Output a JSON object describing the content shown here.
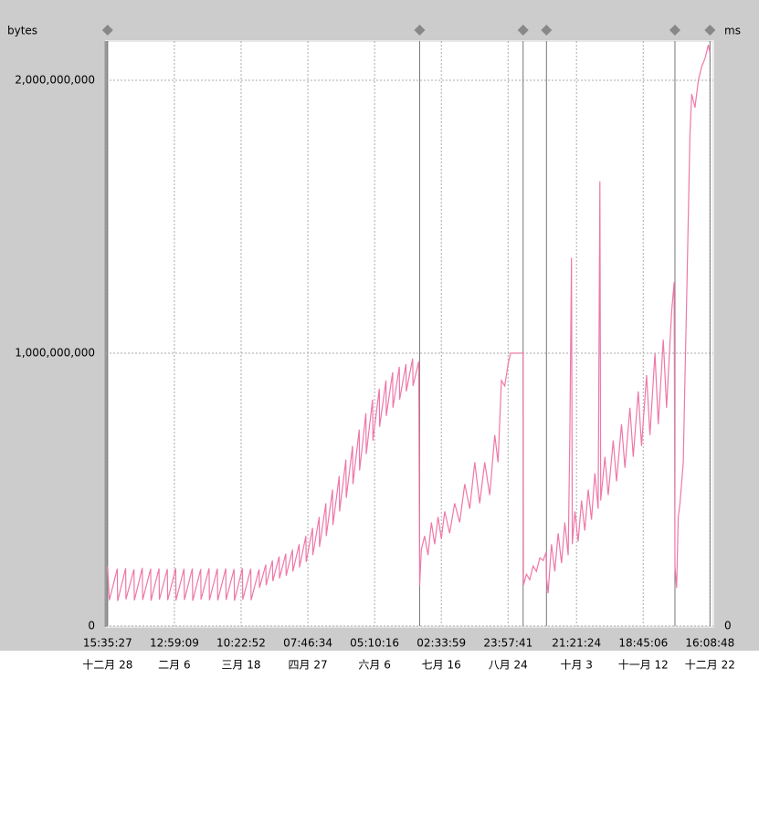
{
  "chart_data": {
    "type": "line",
    "ylabel": "bytes",
    "y2label": "ms",
    "x": [
      0,
      1,
      5.8,
      6,
      10.8,
      11,
      15.8,
      16,
      20.8,
      21,
      25.8,
      26,
      30.8,
      31,
      35.8,
      36,
      40.8,
      41,
      45.8,
      46,
      50.8,
      51,
      55.8,
      56,
      60.8,
      61,
      65.8,
      66,
      70.8,
      71,
      75.8,
      76,
      80.8,
      81,
      85.8,
      86,
      90.8,
      91,
      94.8,
      95,
      98.8,
      99,
      102.8,
      103,
      106.8,
      107,
      110.8,
      111,
      114.8,
      115,
      118.8,
      119,
      122.8,
      123,
      126.8,
      127,
      130.8,
      131,
      134.8,
      135,
      138.8,
      139,
      142.8,
      143,
      146.8,
      147,
      150.8,
      151,
      154.8,
      155,
      158.8,
      159,
      162.8,
      163,
      166.8,
      167,
      170.8,
      171,
      174.8,
      175,
      178.8,
      179,
      182.8,
      183,
      186.5,
      187,
      188,
      190,
      192,
      194,
      196,
      198,
      200,
      202,
      205,
      208,
      211,
      214,
      217,
      220,
      223,
      226,
      229,
      232,
      234,
      236,
      238,
      240,
      241.5,
      249,
      249.2,
      251,
      253,
      255,
      257,
      259,
      261,
      262.8,
      263,
      264,
      266,
      268,
      270,
      272,
      274,
      276,
      277,
      278,
      278.5,
      280,
      282,
      284,
      286,
      288,
      290,
      292,
      294,
      295,
      295.5,
      298,
      300,
      303,
      305,
      308,
      310,
      313,
      315,
      318,
      320,
      323,
      325,
      328,
      330,
      333,
      335,
      338,
      339.5,
      340,
      341,
      342,
      343,
      345,
      346,
      347,
      348,
      349,
      350,
      352,
      354,
      356,
      358,
      360,
      361
    ],
    "series": [
      {
        "color": "#ee78a8",
        "values": [
          220000000,
          95000000,
          210000000,
          92000000,
          212000000,
          98000000,
          208000000,
          94000000,
          213000000,
          96000000,
          210000000,
          93000000,
          211000000,
          97000000,
          209000000,
          95000000,
          212000000,
          94000000,
          210000000,
          96000000,
          211000000,
          93000000,
          209000000,
          97000000,
          212000000,
          95000000,
          210000000,
          94000000,
          211000000,
          96000000,
          209000000,
          93000000,
          212000000,
          97000000,
          210000000,
          95000000,
          208000000,
          140000000,
          225000000,
          150000000,
          240000000,
          165000000,
          255000000,
          175000000,
          265000000,
          185000000,
          280000000,
          200000000,
          300000000,
          215000000,
          330000000,
          235000000,
          360000000,
          260000000,
          400000000,
          290000000,
          450000000,
          330000000,
          500000000,
          370000000,
          550000000,
          420000000,
          610000000,
          470000000,
          660000000,
          520000000,
          720000000,
          570000000,
          780000000,
          630000000,
          830000000,
          680000000,
          870000000,
          730000000,
          900000000,
          770000000,
          930000000,
          800000000,
          950000000,
          830000000,
          960000000,
          860000000,
          980000000,
          880000000,
          970000000,
          150000000,
          280000000,
          330000000,
          260000000,
          380000000,
          300000000,
          400000000,
          320000000,
          420000000,
          340000000,
          450000000,
          380000000,
          520000000,
          430000000,
          600000000,
          450000000,
          600000000,
          480000000,
          700000000,
          600000000,
          900000000,
          880000000,
          960000000,
          1000000000,
          1000000000,
          150000000,
          190000000,
          170000000,
          220000000,
          200000000,
          250000000,
          240000000,
          270000000,
          180000000,
          120000000,
          300000000,
          200000000,
          340000000,
          230000000,
          380000000,
          260000000,
          700000000,
          1350000000,
          300000000,
          420000000,
          310000000,
          460000000,
          350000000,
          500000000,
          390000000,
          560000000,
          430000000,
          1630000000,
          460000000,
          620000000,
          480000000,
          680000000,
          530000000,
          740000000,
          580000000,
          800000000,
          620000000,
          860000000,
          660000000,
          920000000,
          700000000,
          1000000000,
          740000000,
          1050000000,
          800000000,
          1150000000,
          1260000000,
          220000000,
          140000000,
          400000000,
          450000000,
          600000000,
          900000000,
          1200000000,
          1500000000,
          1800000000,
          1950000000,
          1900000000,
          2000000000,
          2050000000,
          2080000000,
          2130000000,
          2100000000
        ]
      }
    ],
    "xlim": [
      -1,
      363
    ],
    "xticks": [
      {
        "value": 0,
        "label": "15:35:27"
      },
      {
        "value": 40,
        "label": "12:59:09"
      },
      {
        "value": 80,
        "label": "10:22:52"
      },
      {
        "value": 120,
        "label": "07:46:34"
      },
      {
        "value": 160,
        "label": "05:10:16"
      },
      {
        "value": 200,
        "label": "02:33:59"
      },
      {
        "value": 240,
        "label": "23:57:41"
      },
      {
        "value": 281,
        "label": "21:21:24"
      },
      {
        "value": 321,
        "label": "18:45:06"
      },
      {
        "value": 361,
        "label": "16:08:48"
      }
    ],
    "xtick_dates": [
      "十二月 28",
      "二月 6",
      "三月 18",
      "四月 27",
      "六月 6",
      "七月 16",
      "八月 24",
      "十月 3",
      "十一月 12",
      "十二月 22"
    ],
    "ylim": [
      0,
      2144000000
    ],
    "yticks": [
      0,
      {
        "value": 1000000000,
        "label": "1,000,000,000"
      },
      {
        "value": 2000000000,
        "label": "2,000,000,000"
      }
    ],
    "y2ticks": [
      0
    ],
    "event_markers": [
      0,
      187,
      249,
      263,
      340,
      361
    ],
    "grid": true
  }
}
